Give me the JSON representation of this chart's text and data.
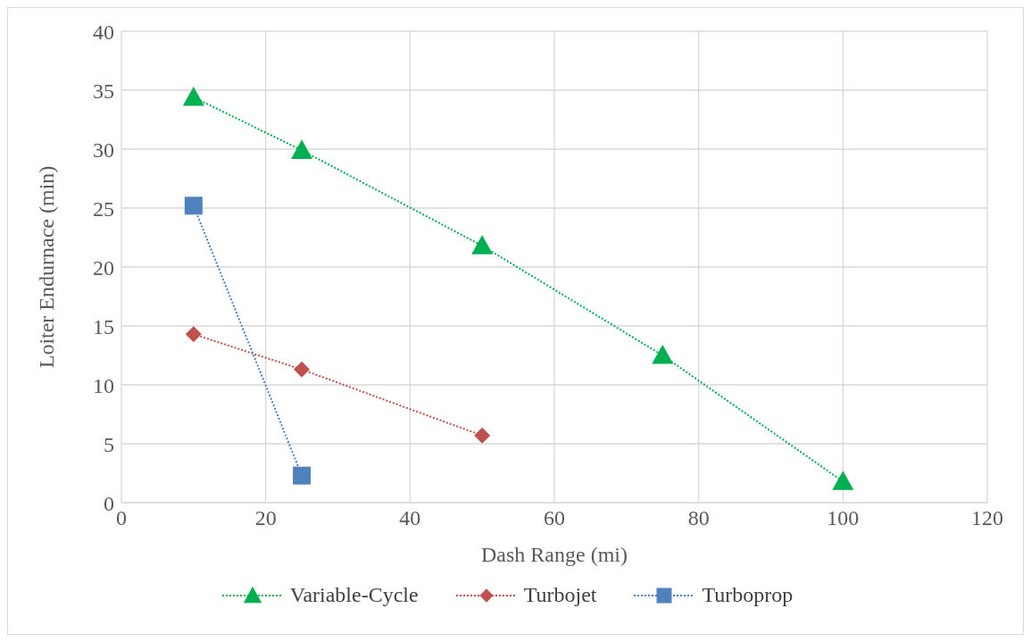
{
  "chart_data": {
    "type": "line",
    "xlabel": "Dash Range (mi)",
    "ylabel": "Loiter Endurnace (min)",
    "xlim": [
      0,
      120
    ],
    "xticks": [
      0,
      20,
      40,
      60,
      80,
      100,
      120
    ],
    "ylim": [
      0,
      40
    ],
    "yticks": [
      0,
      5,
      10,
      15,
      20,
      25,
      30,
      35,
      40
    ],
    "grid": true,
    "legend": "bottom",
    "line_style": "dotted",
    "series": [
      {
        "name": "Variable-Cycle",
        "color": "#00b050",
        "marker": "triangle",
        "x": [
          10,
          25,
          50,
          75,
          100
        ],
        "values": [
          34.4,
          29.9,
          21.8,
          12.5,
          1.8
        ]
      },
      {
        "name": "Turbojet",
        "color": "#c0504d",
        "marker": "diamond",
        "x": [
          10,
          25,
          50
        ],
        "values": [
          14.3,
          11.3,
          5.7
        ]
      },
      {
        "name": "Turboprop",
        "color": "#4f81bd",
        "marker": "square",
        "x": [
          10,
          25
        ],
        "values": [
          25.2,
          2.3
        ]
      }
    ]
  }
}
